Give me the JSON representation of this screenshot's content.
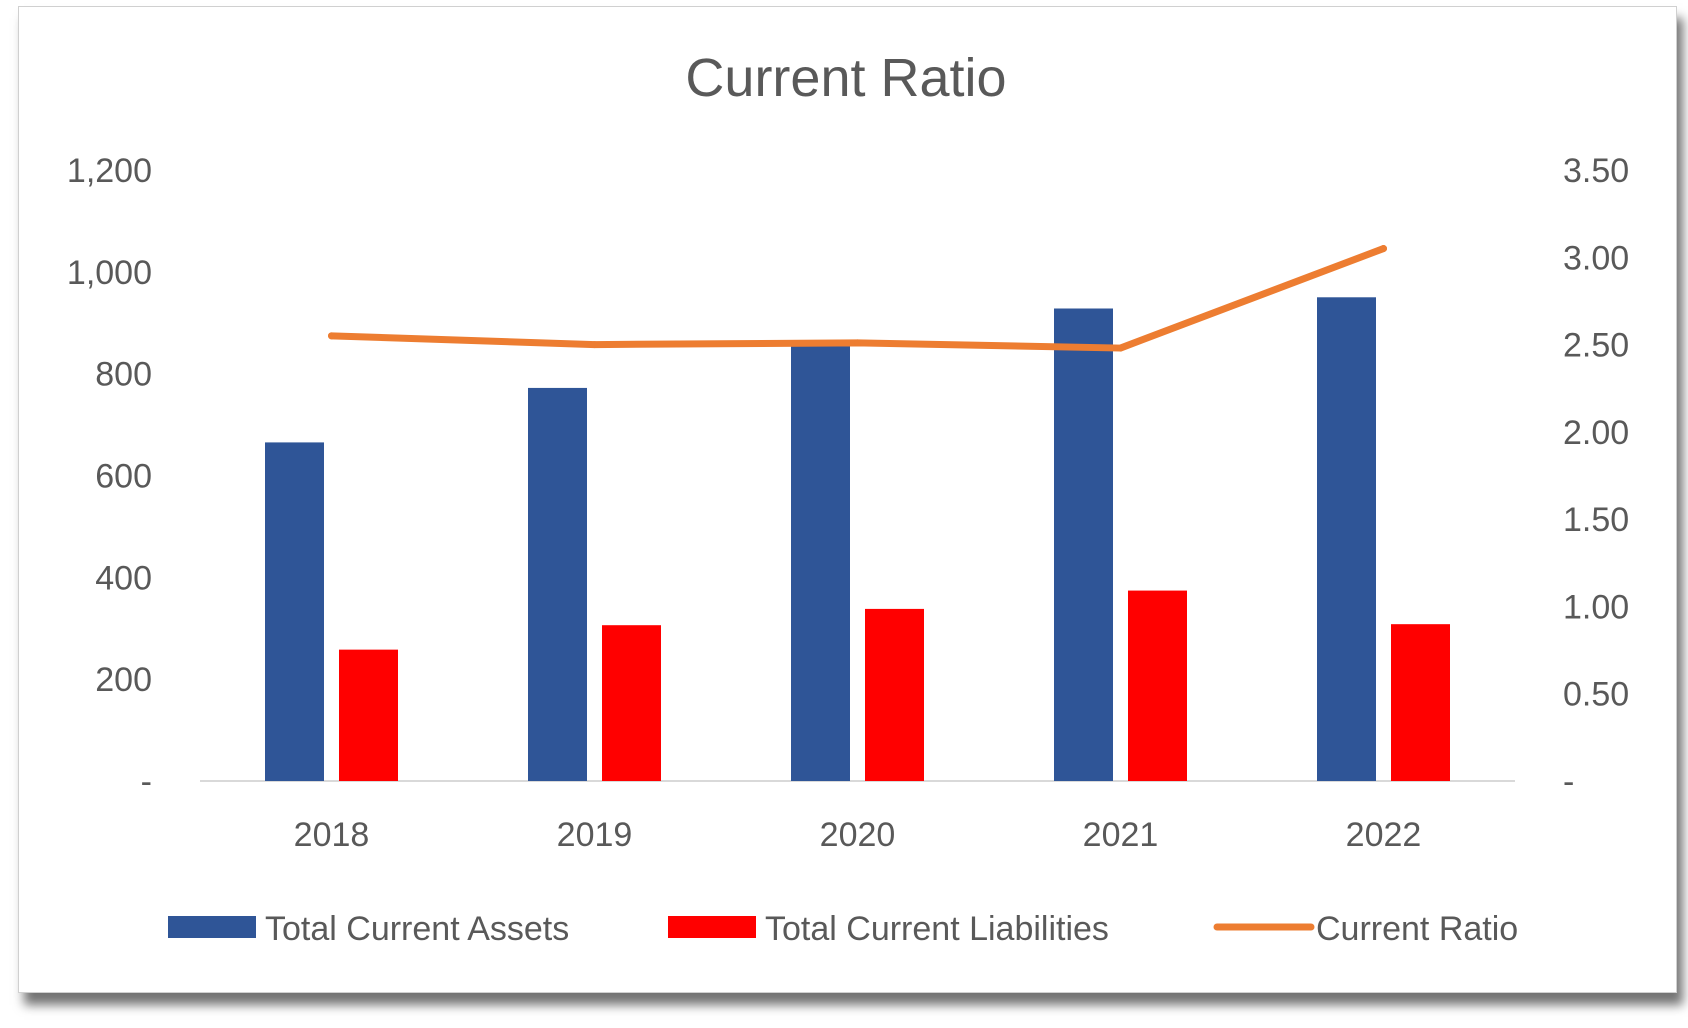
{
  "chart_data": {
    "type": "bar",
    "title": "Current Ratio",
    "categories": [
      "2018",
      "2019",
      "2020",
      "2021",
      "2022"
    ],
    "series": [
      {
        "name": "Total Current Assets",
        "type": "bar",
        "axis": "left",
        "color": "#2F5597",
        "values": [
          665,
          772,
          855,
          928,
          950
        ]
      },
      {
        "name": "Total Current Liabilities",
        "type": "bar",
        "axis": "left",
        "color": "#FF0000",
        "values": [
          258,
          306,
          338,
          374,
          308
        ]
      },
      {
        "name": "Current Ratio",
        "type": "line",
        "axis": "right",
        "color": "#ED7D31",
        "values": [
          2.55,
          2.5,
          2.51,
          2.48,
          3.05
        ]
      }
    ],
    "y_left": {
      "ylim": [
        0,
        1200
      ],
      "ticks": [
        "-",
        "200",
        "400",
        "600",
        "800",
        "1,000",
        "1,200"
      ]
    },
    "y_right": {
      "ylim": [
        0,
        3.5
      ],
      "ticks": [
        "-",
        "0.50",
        "1.00",
        "1.50",
        "2.00",
        "2.50",
        "3.00",
        "3.50"
      ]
    },
    "xlabel": "",
    "ylabel": "",
    "grid": false,
    "legend_position": "bottom"
  }
}
